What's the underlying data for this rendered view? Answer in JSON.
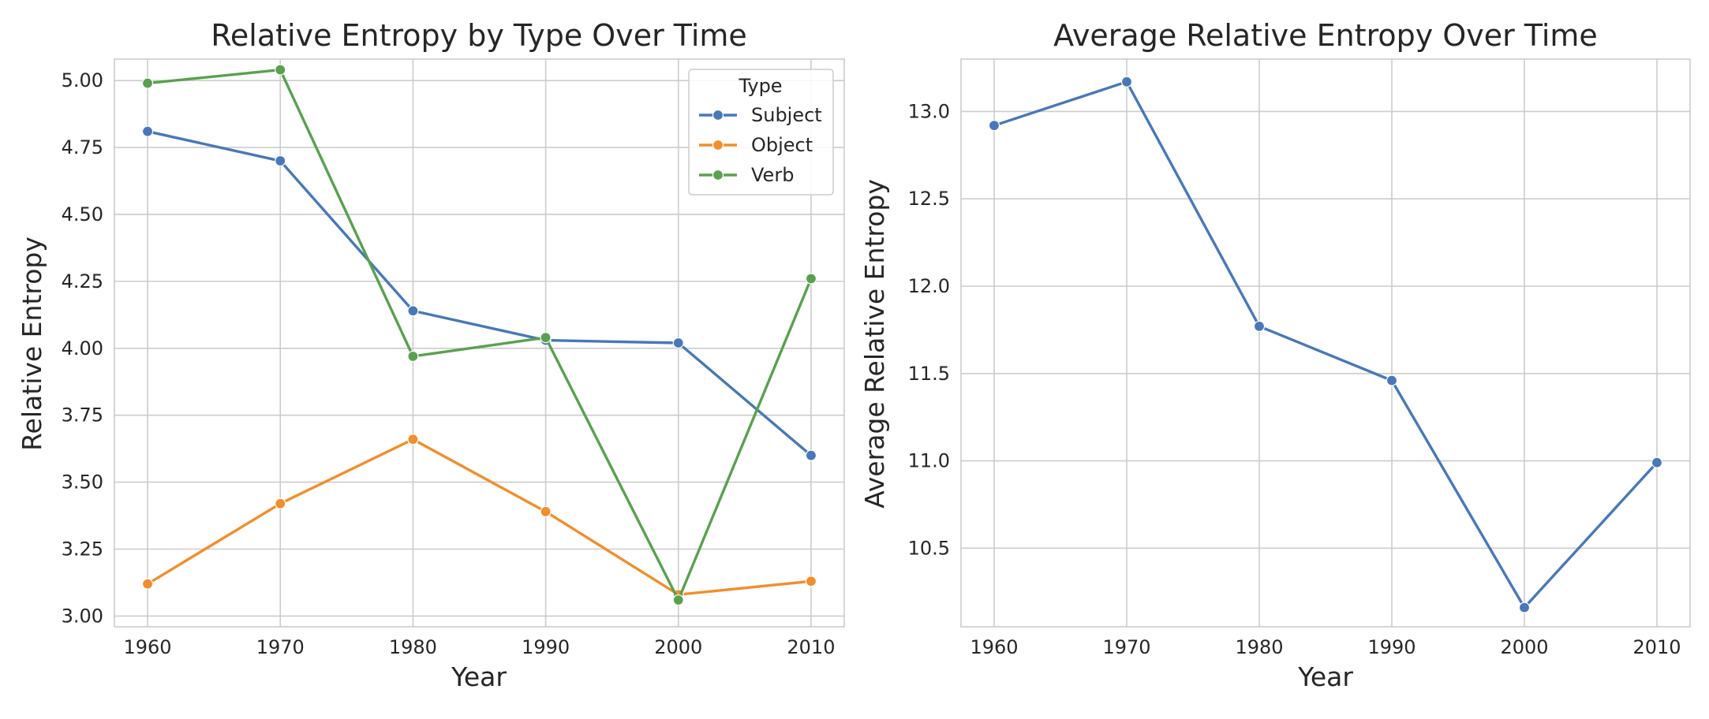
{
  "chart_data": [
    {
      "type": "line",
      "title": "Relative Entropy by Type Over Time",
      "xlabel": "Year",
      "ylabel": "Relative Entropy",
      "x": [
        1960,
        1970,
        1980,
        1990,
        2000,
        2010
      ],
      "xticks": [
        "1960",
        "1970",
        "1980",
        "1990",
        "2000",
        "2010"
      ],
      "yticks": [
        "3.00",
        "3.25",
        "3.50",
        "3.75",
        "4.00",
        "4.25",
        "4.50",
        "4.75",
        "5.00"
      ],
      "xlim": [
        1957.5,
        2012.5
      ],
      "ylim": [
        2.96,
        5.08
      ],
      "grid": true,
      "legend": {
        "title": "Type",
        "position": "top-right"
      },
      "series": [
        {
          "name": "Subject",
          "color": "#4878b8",
          "values": [
            4.81,
            4.7,
            4.14,
            4.03,
            4.02,
            3.6
          ]
        },
        {
          "name": "Object",
          "color": "#f28e2b",
          "values": [
            3.12,
            3.42,
            3.66,
            3.39,
            3.08,
            3.13
          ]
        },
        {
          "name": "Verb",
          "color": "#59a14f",
          "values": [
            4.99,
            5.04,
            3.97,
            4.04,
            3.06,
            4.26
          ]
        }
      ]
    },
    {
      "type": "line",
      "title": "Average Relative Entropy Over Time",
      "xlabel": "Year",
      "ylabel": "Average Relative Entropy",
      "x": [
        1960,
        1970,
        1980,
        1990,
        2000,
        2010
      ],
      "xticks": [
        "1960",
        "1970",
        "1980",
        "1990",
        "2000",
        "2010"
      ],
      "yticks": [
        "10.5",
        "11.0",
        "11.5",
        "12.0",
        "12.5",
        "13.0"
      ],
      "xlim": [
        1957.5,
        2012.5
      ],
      "ylim": [
        10.05,
        13.3
      ],
      "grid": true,
      "series": [
        {
          "color": "#4878b8",
          "values": [
            12.92,
            13.17,
            11.77,
            11.46,
            10.16,
            10.99
          ]
        }
      ]
    }
  ]
}
